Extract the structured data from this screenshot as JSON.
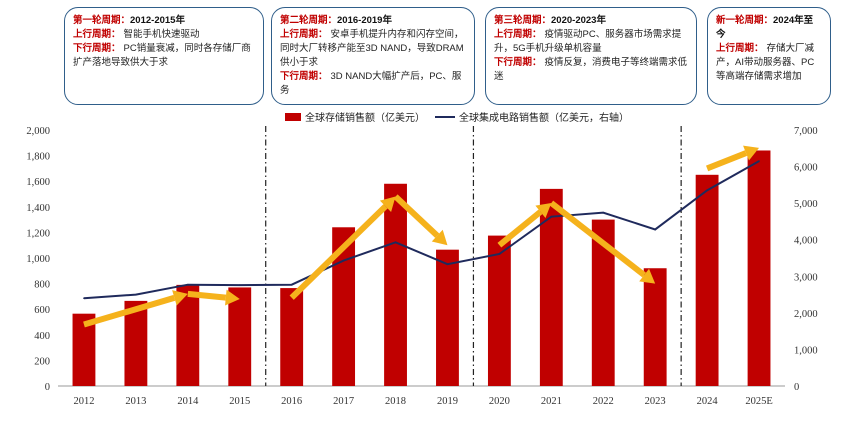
{
  "cycles": [
    {
      "title": "第一轮周期：",
      "range": "2012-2015年",
      "lines": [
        {
          "key": "上行周期：",
          "text": "智能手机快速驱动"
        },
        {
          "key": "下行周期：",
          "text": "PC销量衰减，同时各存储厂商扩产落地导致供大于求"
        }
      ]
    },
    {
      "title": "第二轮周期：",
      "range": "2016-2019年",
      "lines": [
        {
          "key": "上行周期：",
          "text": "安卓手机提升内存和闪存空间，同时大厂转移产能至3D NAND，导致DRAM供小于求"
        },
        {
          "key": "下行周期：",
          "text": "3D NAND大幅扩产后，PC、服务"
        }
      ]
    },
    {
      "title": "第三轮周期：",
      "range": "2020-2023年",
      "lines": [
        {
          "key": "上行周期：",
          "text": "疫情驱动PC、服务器市场需求提升，5G手机升级单机容量"
        },
        {
          "key": "下行周期：",
          "text": "疫情反复，消费电子等终端需求低迷"
        }
      ]
    },
    {
      "title": "新一轮周期：",
      "range": "2024年至今",
      "lines": [
        {
          "key": "上行周期：",
          "text": "存储大厂减产，AI带动服务器、PC等高端存储需求增加"
        }
      ]
    }
  ],
  "chart_data": {
    "type": "bar",
    "categories": [
      "2012",
      "2013",
      "2014",
      "2015",
      "2016",
      "2017",
      "2018",
      "2019",
      "2020",
      "2021",
      "2022",
      "2023",
      "2024",
      "2025E"
    ],
    "series": [
      {
        "name": "全球存储销售额（亿美元）",
        "type": "bar",
        "axis": "left",
        "color": "#c00000",
        "values": [
          565,
          665,
          790,
          770,
          765,
          1240,
          1580,
          1065,
          1175,
          1540,
          1300,
          920,
          1650,
          1840
        ]
      },
      {
        "name": "全球集成电路销售额（亿美元，右轴）",
        "type": "line",
        "axis": "right",
        "color": "#1f2a5c",
        "values": [
          2400,
          2500,
          2770,
          2760,
          2770,
          3430,
          3930,
          3330,
          3610,
          4630,
          4740,
          4280,
          5350,
          6150
        ]
      }
    ],
    "ylim_left": [
      0,
      2000
    ],
    "yticks_left": [
      "0",
      "200",
      "400",
      "600",
      "800",
      "1,000",
      "1,200",
      "1,400",
      "1,600",
      "1,800",
      "2,000"
    ],
    "ylim_right": [
      0,
      7000
    ],
    "yticks_right": [
      "0",
      "1,000",
      "2,000",
      "3,000",
      "4,000",
      "5,000",
      "6,000",
      "7,000"
    ],
    "legend": "top-center",
    "grid": false,
    "cycle_dividers_after": [
      "2015",
      "2019",
      "2023"
    ],
    "trend_arrows": {
      "color": "#f5b21c",
      "points": [
        [
          "2012",
          480
        ],
        [
          "2014",
          720
        ],
        [
          "2015",
          680
        ],
        [
          "2016",
          690
        ],
        [
          "2018",
          1480
        ],
        [
          "2019",
          1100
        ],
        [
          "2020",
          1100
        ],
        [
          "2021",
          1430
        ],
        [
          "2023",
          800
        ],
        [
          "2024",
          1700
        ],
        [
          "2025E",
          1860
        ]
      ],
      "segments": [
        [
          0,
          1
        ],
        [
          1,
          2
        ],
        [
          3,
          4
        ],
        [
          4,
          5
        ],
        [
          6,
          7
        ],
        [
          7,
          8
        ],
        [
          9,
          10
        ]
      ]
    }
  }
}
